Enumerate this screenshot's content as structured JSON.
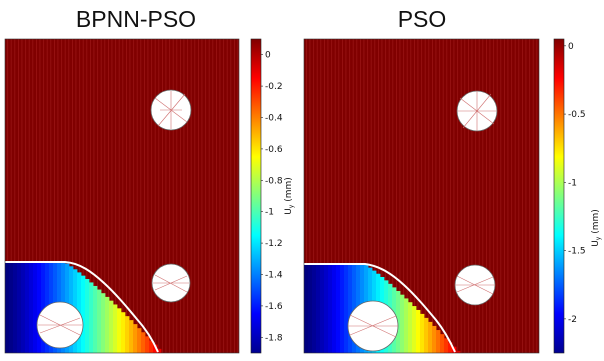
{
  "panels": [
    {
      "title": "BPNN-PSO",
      "colorbar": {
        "label_main": "U",
        "label_sub": "y",
        "label_unit": " (mm)",
        "min": -1.9,
        "max": 0.1,
        "ticks": [
          {
            "value": 0,
            "text": "0"
          },
          {
            "value": -0.2,
            "text": "-0.2"
          },
          {
            "value": -0.4,
            "text": "-0.4"
          },
          {
            "value": -0.6,
            "text": "-0.6"
          },
          {
            "value": -0.8,
            "text": "-0.8"
          },
          {
            "value": -1,
            "text": "-1"
          },
          {
            "value": -1.2,
            "text": "-1.2"
          },
          {
            "value": -1.4,
            "text": "-1.4"
          },
          {
            "value": -1.6,
            "text": "-1.6"
          },
          {
            "value": -1.8,
            "text": "-1.8"
          }
        ]
      }
    },
    {
      "title": "PSO",
      "colorbar": {
        "label_main": "U",
        "label_sub": "y",
        "label_unit": " (mm)",
        "min": -2.25,
        "max": 0.05,
        "ticks": [
          {
            "value": 0,
            "text": "0"
          },
          {
            "value": -0.5,
            "text": "-0.5"
          },
          {
            "value": -1,
            "text": "-1"
          },
          {
            "value": -1.5,
            "text": "-1.5"
          },
          {
            "value": -2,
            "text": "-2"
          }
        ]
      }
    }
  ],
  "colors": {
    "background_field": "#800000",
    "colormap": "jet"
  }
}
